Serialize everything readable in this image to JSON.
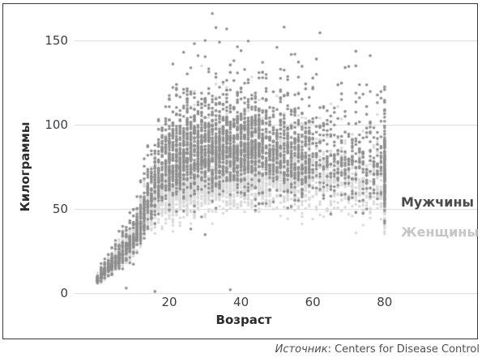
{
  "figure": {
    "source_prefix": "Источник",
    "source_rest": ": Centers for Disease Control"
  },
  "chart_data": {
    "type": "scatter",
    "title": "",
    "xlabel": "Возраст",
    "ylabel": "Килограммы",
    "x_ticks": [
      20,
      40,
      60,
      80
    ],
    "y_ticks": [
      0,
      50,
      100,
      150
    ],
    "xlim": [
      0,
      81
    ],
    "ylim": [
      0,
      170
    ],
    "grid": "horizontal",
    "grid_color": "#d9d9d9",
    "axis_text_color": "#3d4043",
    "legend_position": "right-inside",
    "seed": 987654321,
    "age_counts": [
      [
        0,
        10,
        34
      ],
      [
        11,
        19,
        40
      ],
      [
        20,
        45,
        60
      ],
      [
        46,
        59,
        38
      ],
      [
        60,
        79,
        18
      ],
      [
        80,
        80,
        130
      ]
    ],
    "series": [
      {
        "name": "Мужчины",
        "dot_color": "#8d8d8d",
        "label_color": "#4a4a4a",
        "draw_order": 2,
        "median_by_age": [
          [
            0,
            8
          ],
          [
            2,
            13
          ],
          [
            5,
            19
          ],
          [
            8,
            27
          ],
          [
            10,
            33
          ],
          [
            12,
            42
          ],
          [
            14,
            54
          ],
          [
            16,
            65
          ],
          [
            18,
            72
          ],
          [
            20,
            77
          ],
          [
            25,
            82
          ],
          [
            30,
            85
          ],
          [
            35,
            86
          ],
          [
            40,
            87
          ],
          [
            45,
            87
          ],
          [
            50,
            86
          ],
          [
            55,
            85
          ],
          [
            60,
            84
          ],
          [
            65,
            82
          ],
          [
            70,
            80
          ],
          [
            75,
            77
          ],
          [
            80,
            73
          ]
        ],
        "sd_up_abs": 17,
        "sd_dn_abs": 14,
        "sd_up_rel": 0.22,
        "sd_dn_rel": 0.15,
        "min_kg": 2,
        "max_kg": 168,
        "outliers": [
          [
            32,
            166
          ],
          [
            30,
            150
          ],
          [
            34,
            149
          ],
          [
            24,
            143
          ],
          [
            28,
            141
          ],
          [
            38,
            138
          ],
          [
            21,
            136
          ],
          [
            46,
            131
          ],
          [
            8,
            3
          ],
          [
            16,
            1
          ],
          [
            37,
            2
          ]
        ]
      },
      {
        "name": "Женщины",
        "dot_color": "#d9d9d9",
        "label_color": "#c6c6c6",
        "draw_order": 1,
        "median_by_age": [
          [
            0,
            7.5
          ],
          [
            2,
            12
          ],
          [
            5,
            18
          ],
          [
            8,
            25
          ],
          [
            10,
            31
          ],
          [
            12,
            40
          ],
          [
            14,
            49
          ],
          [
            16,
            55
          ],
          [
            18,
            58
          ],
          [
            20,
            60
          ],
          [
            25,
            64
          ],
          [
            30,
            67
          ],
          [
            35,
            69
          ],
          [
            40,
            70
          ],
          [
            45,
            70
          ],
          [
            50,
            70
          ],
          [
            55,
            70
          ],
          [
            60,
            69
          ],
          [
            65,
            67
          ],
          [
            70,
            65
          ],
          [
            75,
            62
          ],
          [
            80,
            59
          ]
        ],
        "sd_up_abs": 16,
        "sd_dn_abs": 13,
        "sd_up_rel": 0.2,
        "sd_dn_rel": 0.14,
        "min_kg": 2,
        "max_kg": 135,
        "outliers": [
          [
            35,
            124
          ],
          [
            50,
            117
          ],
          [
            27,
            120
          ]
        ]
      }
    ]
  }
}
